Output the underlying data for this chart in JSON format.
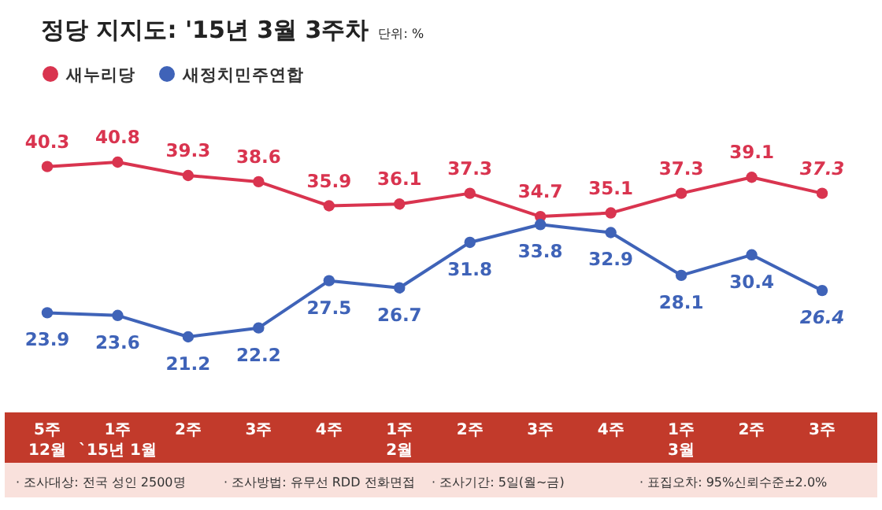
{
  "chart_data": {
    "type": "line",
    "title": "정당 지지도: '15년 3월 3주차",
    "subtitle": "단위: %",
    "categories": [
      "5주\n12월",
      "1주\n`15년 1월",
      "2주",
      "3주",
      "4주",
      "1주\n2월",
      "2주",
      "3주",
      "4주",
      "1주\n3월",
      "2주",
      "3주"
    ],
    "series": [
      {
        "name": "새누리당",
        "color": "#d9344f",
        "values": [
          40.3,
          40.8,
          39.3,
          38.6,
          35.9,
          36.1,
          37.3,
          34.7,
          35.1,
          37.3,
          39.1,
          37.3
        ]
      },
      {
        "name": "새정치민주연합",
        "color": "#3f63b8",
        "values": [
          23.9,
          23.6,
          21.2,
          22.2,
          27.5,
          26.7,
          31.8,
          33.8,
          32.9,
          28.1,
          30.4,
          26.4
        ]
      }
    ],
    "data_labels": true,
    "marker": "circle",
    "line_style": "solid",
    "legend": "top left",
    "annotations": [
      "· 조사대상: 전국 성인 2500명",
      "· 조사방법: 유무선 RDD 전화면접",
      "· 조사기간: 5일(월~금)",
      "· 표집오차: 95%신뢰수준±2.0%"
    ]
  }
}
